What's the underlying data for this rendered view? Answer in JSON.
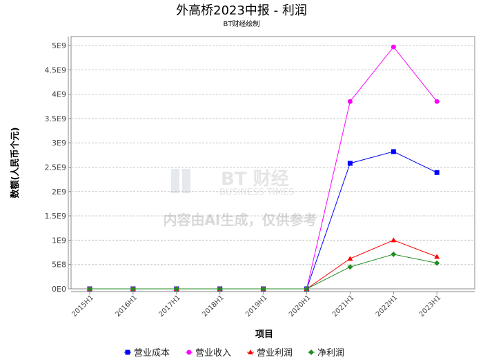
{
  "chart_data": {
    "type": "line",
    "title": "外高桥2023中报 - 利润",
    "subtitle": "BT财经绘制",
    "xlabel": "项目",
    "ylabel": "数额(人民币个元)",
    "ylim": [
      0,
      5200000000
    ],
    "yticks": [
      0,
      500000000,
      1000000000,
      1500000000,
      2000000000,
      2500000000,
      3000000000,
      3500000000,
      4000000000,
      4500000000,
      5000000000
    ],
    "ytick_labels": [
      "0E0",
      "5E8",
      "1E9",
      "1.5E9",
      "2E9",
      "2.5E9",
      "3E9",
      "3.5E9",
      "4E9",
      "4.5E9",
      "5E9"
    ],
    "categories": [
      "2015H1",
      "2016H1",
      "2017H1",
      "2018H1",
      "2019H1",
      "2020H1",
      "2021H1",
      "2022H1",
      "2023H1"
    ],
    "grid": true,
    "legend_position": "bottom",
    "watermark": "BT财经 BUSINESS TIMES 内容由AI生成，仅供参考",
    "series": [
      {
        "name": "营业成本",
        "color": "#0000ff",
        "marker": "square",
        "values": [
          0,
          0,
          0,
          0,
          0,
          0,
          2580000000,
          2820000000,
          2390000000
        ]
      },
      {
        "name": "营业收入",
        "color": "#ff00ff",
        "marker": "circle",
        "values": [
          0,
          0,
          0,
          0,
          0,
          0,
          3850000000,
          4970000000,
          3850000000
        ]
      },
      {
        "name": "营业利润",
        "color": "#ff0000",
        "marker": "triangle",
        "values": [
          0,
          0,
          0,
          0,
          0,
          0,
          620000000,
          1000000000,
          660000000
        ]
      },
      {
        "name": "净利润",
        "color": "#228b22",
        "marker": "diamond",
        "values": [
          0,
          0,
          0,
          0,
          0,
          0,
          450000000,
          710000000,
          530000000
        ]
      }
    ]
  }
}
